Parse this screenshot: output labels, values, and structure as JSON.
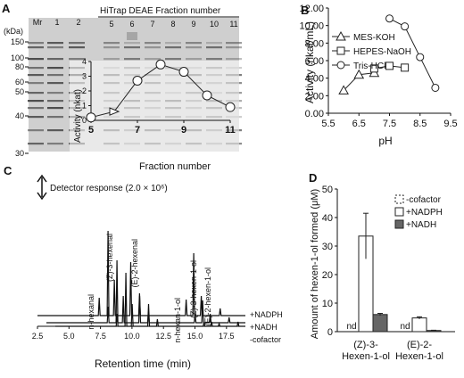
{
  "panels": {
    "a": {
      "letter": "A",
      "kda_label": "(kDa)",
      "lane_labels": [
        "Mr",
        "1",
        "2"
      ],
      "fraction_header": "HiTrap DEAE Fraction number",
      "fraction_lanes": [
        "5",
        "6",
        "7",
        "8",
        "9",
        "10",
        "11"
      ],
      "marker_kda": [
        "150",
        "100",
        "80",
        "60",
        "50",
        "40",
        "30"
      ],
      "colors": {
        "gel": "#c9c9c9",
        "band": "#3a3a3a"
      }
    },
    "b": {
      "letter": "B"
    },
    "c": {
      "letter": "C"
    },
    "d": {
      "letter": "D"
    }
  },
  "chart_data": [
    {
      "id": "a-inset",
      "type": "line",
      "xlabel": "Fraction number",
      "ylabel": "Activity (nkat)",
      "xlim": [
        5,
        11
      ],
      "ylim": [
        0,
        4
      ],
      "xticks": [
        "5",
        "7",
        "9",
        "11"
      ],
      "yticks": [
        "0",
        "1",
        "2",
        "3",
        "4"
      ],
      "series": [
        {
          "x": [
            5,
            6,
            7,
            8,
            9,
            10,
            11
          ],
          "values": [
            0.2,
            0.6,
            2.7,
            3.8,
            3.3,
            1.7,
            0.9
          ]
        }
      ]
    },
    {
      "id": "b",
      "type": "line",
      "xlabel": "pH",
      "ylabel": "Activity (nkat/mL)",
      "xlim": [
        5.5,
        9.5
      ],
      "ylim": [
        0,
        12
      ],
      "xticks": [
        "5.5",
        "6.5",
        "7.5",
        "8.5",
        "9.5"
      ],
      "yticks": [
        "0.00",
        "2.00",
        "4.00",
        "6.00",
        "8.00",
        "10.00",
        "12.00"
      ],
      "legend_position": "top-left",
      "series": [
        {
          "name": "MES-KOH",
          "marker": "triangle",
          "x": [
            6.0,
            6.5,
            7.0
          ],
          "values": [
            2.6,
            4.4,
            4.6
          ]
        },
        {
          "name": "HEPES-NaOH",
          "marker": "square",
          "x": [
            7.0,
            7.5,
            8.0
          ],
          "values": [
            5.1,
            5.4,
            5.2
          ]
        },
        {
          "name": "Tris-HCl",
          "marker": "circle",
          "x": [
            7.5,
            8.0,
            8.5,
            9.0
          ],
          "values": [
            10.8,
            9.9,
            6.4,
            2.9
          ]
        }
      ]
    },
    {
      "id": "c",
      "type": "line",
      "xlabel": "Retention time (min)",
      "xlim": [
        2.5,
        19
      ],
      "xticks": [
        "2.5",
        "5.0",
        "7.5",
        "10.0",
        "12.5",
        "15.0",
        "17.5"
      ],
      "scale_label": "Detector response (2.0 × 10⁶)",
      "traces": [
        "+NADPH",
        "+NADH",
        "-cofactor"
      ],
      "peak_labels": [
        "n-hexanal",
        "(Z)-3-hexenal",
        "(E)-2-hexenal",
        "n-hexan-1-ol",
        "(Z)-3-hexen-1-ol",
        "(E)-2-hexen-1-ol"
      ],
      "peaks": [
        {
          "t": 7.4,
          "h": [
            20,
            18,
            14
          ]
        },
        {
          "t": 8.1,
          "h": [
            95,
            70,
            60
          ]
        },
        {
          "t": 8.6,
          "h": [
            40,
            30,
            25
          ]
        },
        {
          "t": 9.9,
          "h": [
            60,
            30,
            25
          ]
        },
        {
          "t": 10.6,
          "h": [
            25,
            12,
            8
          ]
        },
        {
          "t": 14.3,
          "h": [
            18,
            9,
            4
          ]
        },
        {
          "t": 14.9,
          "h": [
            70,
            25,
            5
          ]
        },
        {
          "t": 15.5,
          "h": [
            22,
            10,
            3
          ]
        },
        {
          "t": 17.0,
          "h": [
            8,
            6,
            5
          ]
        }
      ]
    },
    {
      "id": "d",
      "type": "bar",
      "ylabel": "Amount of hexen-1-ol formed (μM)",
      "ylim": [
        0,
        50
      ],
      "yticks": [
        "0",
        "10",
        "20",
        "30",
        "40",
        "50"
      ],
      "categories": [
        "(Z)-3-Hexen-1-ol",
        "(E)-2-Hexen-1-ol"
      ],
      "category_lines": [
        [
          "(Z)-3-",
          "Hexen-1-ol"
        ],
        [
          "(E)-2-",
          "Hexen-1-ol"
        ]
      ],
      "nd_label": "nd",
      "legend_position": "top-right",
      "series": [
        {
          "name": "-cofactor",
          "style": "dashed",
          "values": [
            0,
            0
          ],
          "errors": [
            0,
            0
          ],
          "nd": [
            true,
            true
          ]
        },
        {
          "name": "+NADPH",
          "style": "white",
          "values": [
            33.5,
            4.8
          ],
          "errors": [
            8,
            0.4
          ],
          "nd": [
            false,
            false
          ]
        },
        {
          "name": "+NADH",
          "style": "gray",
          "values": [
            6.0,
            0.4
          ],
          "errors": [
            0.4,
            0.1
          ],
          "nd": [
            false,
            false
          ]
        }
      ]
    }
  ]
}
